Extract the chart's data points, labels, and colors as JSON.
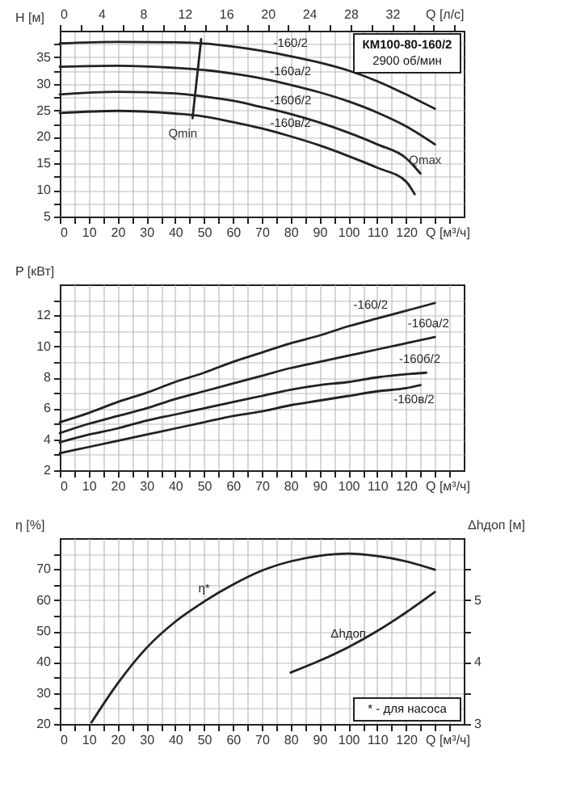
{
  "chart_data": [
    {
      "type": "line",
      "ylabel": "H [м]",
      "xlabel": "Q [м³/ч]",
      "x2label": "Q [л/с]",
      "grid": true,
      "xlim": [
        0,
        140
      ],
      "xticks": [
        0,
        {
          "value": 5,
          "label": null
        },
        10,
        {
          "value": 15,
          "label": null
        },
        20,
        {
          "value": 25,
          "label": null
        },
        30,
        {
          "value": 35,
          "label": null
        },
        40,
        {
          "value": 45,
          "label": null
        },
        50,
        {
          "value": 55,
          "label": null
        },
        60,
        {
          "value": 65,
          "label": null
        },
        70,
        {
          "value": 75,
          "label": null
        },
        80,
        {
          "value": 85,
          "label": null
        },
        90,
        {
          "value": 95,
          "label": null
        },
        100,
        {
          "value": 105,
          "label": null
        },
        110,
        {
          "value": 115,
          "label": null
        },
        120,
        {
          "value": 125,
          "label": null
        },
        {
          "value": 130,
          "label": null
        },
        {
          "value": 135,
          "label": null
        }
      ],
      "x2lim": [
        0,
        38.89
      ],
      "x2ticks": [
        0,
        {
          "value": 2,
          "label": null
        },
        4,
        {
          "value": 6,
          "label": null
        },
        8,
        {
          "value": 10,
          "label": null
        },
        12,
        {
          "value": 14,
          "label": null
        },
        16,
        {
          "value": 18,
          "label": null
        },
        20,
        {
          "value": 22,
          "label": null
        },
        24,
        {
          "value": 26,
          "label": null
        },
        28,
        {
          "value": 30,
          "label": null
        },
        32,
        {
          "value": 34,
          "label": null
        },
        {
          "value": 36,
          "label": null
        },
        {
          "value": 38,
          "label": null
        }
      ],
      "ylim": [
        5,
        40
      ],
      "yticks": [
        5,
        {
          "value": 7.5,
          "label": null
        },
        10,
        {
          "value": 12.5,
          "label": null
        },
        15,
        {
          "value": 17.5,
          "label": null
        },
        20,
        {
          "value": 22.5,
          "label": null
        },
        25,
        {
          "value": 27.5,
          "label": null
        },
        30,
        {
          "value": 32.5,
          "label": null
        },
        35,
        {
          "value": 37.5,
          "label": null
        }
      ],
      "series": [
        {
          "name": "-160/2",
          "color": "#222222",
          "x": [
            0,
            20,
            40,
            50,
            60,
            70,
            80,
            90,
            100,
            110,
            120,
            130
          ],
          "values": [
            37.6,
            37.9,
            37.8,
            37.6,
            37,
            36.2,
            35.2,
            34,
            32.5,
            30.5,
            28,
            25.3
          ]
        },
        {
          "name": "-160а/2",
          "color": "#222222",
          "x": [
            0,
            20,
            40,
            50,
            60,
            70,
            80,
            90,
            100,
            110,
            120,
            130
          ],
          "values": [
            33.2,
            33.4,
            33,
            32.6,
            31.9,
            31,
            29.8,
            28.4,
            26.7,
            24.6,
            22,
            18.6
          ]
        },
        {
          "name": "-160б/2",
          "color": "#222222",
          "x": [
            0,
            20,
            40,
            50,
            60,
            70,
            80,
            90,
            100,
            110,
            120,
            125
          ],
          "values": [
            28,
            28.5,
            28.2,
            27.6,
            26.8,
            25.6,
            24.3,
            22.7,
            20.8,
            18.6,
            16,
            13.1
          ]
        },
        {
          "name": "-160в/2",
          "color": "#222222",
          "x": [
            0,
            20,
            40,
            48,
            60,
            70,
            80,
            90,
            100,
            110,
            120,
            123
          ],
          "values": [
            24.5,
            24.9,
            24.4,
            24,
            22.8,
            21.6,
            20.1,
            18.4,
            16.4,
            14.2,
            11.6,
            9.2
          ]
        },
        {
          "color": "#222222",
          "x": [
            49,
            46
          ],
          "values": [
            38.4,
            23.5
          ]
        }
      ],
      "annotations": [
        "КМ100-80-160/2",
        "2900 об/мин",
        {
          "text": "Qmin",
          "x": 46,
          "y": 23.5
        },
        {
          "text": "Qmax",
          "x": 130,
          "y": 18.6
        }
      ]
    },
    {
      "type": "line",
      "ylabel": "P [кВт]",
      "xlabel": "Q [м³/ч]",
      "grid": true,
      "xlim": [
        0,
        140
      ],
      "xticks": [
        0,
        {
          "value": 5,
          "label": null
        },
        10,
        {
          "value": 15,
          "label": null
        },
        20,
        {
          "value": 25,
          "label": null
        },
        30,
        {
          "value": 35,
          "label": null
        },
        40,
        {
          "value": 45,
          "label": null
        },
        50,
        {
          "value": 55,
          "label": null
        },
        60,
        {
          "value": 65,
          "label": null
        },
        70,
        {
          "value": 75,
          "label": null
        },
        80,
        {
          "value": 85,
          "label": null
        },
        90,
        {
          "value": 95,
          "label": null
        },
        100,
        {
          "value": 105,
          "label": null
        },
        110,
        {
          "value": 115,
          "label": null
        },
        120,
        {
          "value": 125,
          "label": null
        },
        {
          "value": 130,
          "label": null
        },
        {
          "value": 135,
          "label": null
        }
      ],
      "ylim": [
        2,
        14
      ],
      "yticks": [
        2,
        {
          "value": 3,
          "label": null
        },
        4,
        {
          "value": 5,
          "label": null
        },
        6,
        {
          "value": 7,
          "label": null
        },
        8,
        {
          "value": 9,
          "label": null
        },
        10,
        {
          "value": 11,
          "label": null
        },
        12,
        {
          "value": 13,
          "label": null
        }
      ],
      "series": [
        {
          "name": "-160/2",
          "color": "#222222",
          "x": [
            0,
            10,
            20,
            30,
            40,
            50,
            60,
            70,
            80,
            90,
            100,
            110,
            120,
            130
          ],
          "values": [
            5.1,
            5.7,
            6.4,
            7.0,
            7.7,
            8.3,
            9.0,
            9.6,
            10.2,
            10.7,
            11.3,
            11.8,
            12.3,
            12.8
          ]
        },
        {
          "name": "-160а/2",
          "color": "#222222",
          "x": [
            0,
            10,
            20,
            30,
            40,
            50,
            60,
            70,
            80,
            90,
            100,
            110,
            120,
            130
          ],
          "values": [
            4.4,
            5.0,
            5.5,
            6.0,
            6.6,
            7.1,
            7.6,
            8.1,
            8.6,
            9.0,
            9.4,
            9.8,
            10.2,
            10.6
          ]
        },
        {
          "name": "-160б/2",
          "color": "#222222",
          "x": [
            0,
            10,
            20,
            30,
            40,
            50,
            60,
            70,
            80,
            90,
            100,
            110,
            120,
            127
          ],
          "values": [
            3.8,
            4.3,
            4.7,
            5.2,
            5.6,
            6.0,
            6.4,
            6.8,
            7.2,
            7.5,
            7.7,
            8.0,
            8.2,
            8.3
          ]
        },
        {
          "name": "-160в/2",
          "color": "#222222",
          "x": [
            0,
            10,
            20,
            30,
            40,
            50,
            60,
            70,
            80,
            90,
            100,
            110,
            120,
            125
          ],
          "values": [
            3.1,
            3.5,
            3.9,
            4.3,
            4.7,
            5.1,
            5.5,
            5.8,
            6.2,
            6.5,
            6.8,
            7.1,
            7.3,
            7.5
          ]
        }
      ]
    },
    {
      "type": "line",
      "ylabel": "η [%]",
      "y2label": "Δhдоп [м]",
      "xlabel": "Q [м³/ч]",
      "grid": true,
      "xlim": [
        0,
        140
      ],
      "xticks": [
        0,
        {
          "value": 5,
          "label": null
        },
        10,
        {
          "value": 15,
          "label": null
        },
        20,
        {
          "value": 25,
          "label": null
        },
        30,
        {
          "value": 35,
          "label": null
        },
        40,
        {
          "value": 45,
          "label": null
        },
        50,
        {
          "value": 55,
          "label": null
        },
        60,
        {
          "value": 65,
          "label": null
        },
        70,
        {
          "value": 75,
          "label": null
        },
        80,
        {
          "value": 85,
          "label": null
        },
        90,
        {
          "value": 95,
          "label": null
        },
        100,
        {
          "value": 105,
          "label": null
        },
        110,
        {
          "value": 115,
          "label": null
        },
        120,
        {
          "value": 125,
          "label": null
        },
        {
          "value": 130,
          "label": null
        },
        {
          "value": 135,
          "label": null
        }
      ],
      "ylim": [
        20,
        80
      ],
      "yticks": [
        20,
        {
          "value": 25,
          "label": null
        },
        30,
        {
          "value": 35,
          "label": null
        },
        40,
        {
          "value": 45,
          "label": null
        },
        50,
        {
          "value": 55,
          "label": null
        },
        60,
        {
          "value": 65,
          "label": null
        },
        70,
        {
          "value": 75,
          "label": null
        }
      ],
      "y2lim": [
        3,
        6
      ],
      "y2ticks": [
        3,
        {
          "value": 3.5,
          "label": null
        },
        4,
        {
          "value": 4.5,
          "label": null
        },
        5,
        {
          "value": 5.5,
          "label": null
        }
      ],
      "series": [
        {
          "name": "η*",
          "color": "#222222",
          "x": [
            11,
            20,
            30,
            40,
            50,
            60,
            70,
            80,
            90,
            100,
            110,
            120,
            130
          ],
          "values": [
            20.5,
            33,
            44.5,
            53,
            59.5,
            65,
            69.5,
            72.5,
            74.3,
            75,
            74.2,
            72.5,
            69.8
          ]
        },
        {
          "name": "Δhдоп",
          "color": "#222222",
          "axis": "y2",
          "x": [
            80,
            90,
            100,
            110,
            120,
            130
          ],
          "values": [
            3.83,
            4.02,
            4.24,
            4.5,
            4.8,
            5.13
          ]
        }
      ],
      "annotations": [
        "* - для насоса"
      ]
    }
  ]
}
